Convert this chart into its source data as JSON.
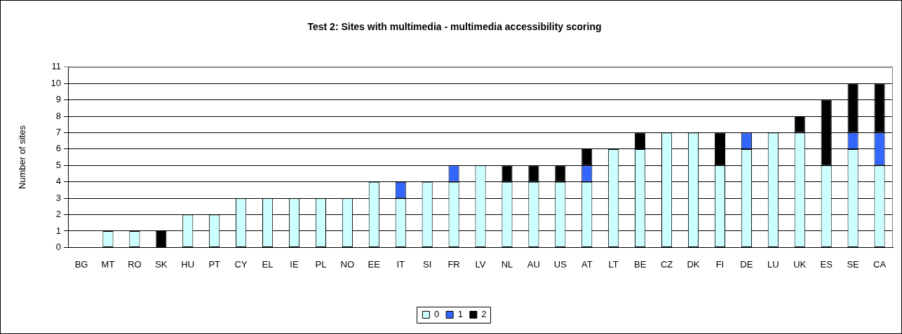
{
  "chart_data": {
    "type": "bar",
    "title": "Test 2: Sites with multimedia - multimedia accessibility scoring",
    "ylabel": "Number of sites",
    "categories": [
      "BG",
      "MT",
      "RO",
      "SK",
      "HU",
      "PT",
      "CY",
      "EL",
      "IE",
      "PL",
      "NO",
      "EE",
      "IT",
      "SI",
      "FR",
      "LV",
      "NL",
      "AU",
      "US",
      "AT",
      "LT",
      "BE",
      "CZ",
      "DK",
      "FI",
      "DE",
      "LU",
      "UK",
      "ES",
      "SE",
      "CA"
    ],
    "series": [
      {
        "name": "0",
        "color": "#ccffff",
        "values": [
          0,
          1,
          1,
          0,
          2,
          2,
          3,
          3,
          3,
          3,
          3,
          4,
          3,
          4,
          4,
          5,
          4,
          4,
          4,
          4,
          6,
          6,
          7,
          7,
          5,
          6,
          7,
          7,
          5,
          6,
          5
        ]
      },
      {
        "name": "1",
        "color": "#3366ff",
        "values": [
          0,
          0,
          0,
          0,
          0,
          0,
          0,
          0,
          0,
          0,
          0,
          0,
          1,
          0,
          1,
          0,
          0,
          0,
          0,
          1,
          0,
          0,
          0,
          0,
          0,
          1,
          0,
          0,
          0,
          1,
          2
        ]
      },
      {
        "name": "2",
        "color": "#000000",
        "values": [
          0,
          0,
          0,
          1,
          0,
          0,
          0,
          0,
          0,
          0,
          0,
          0,
          0,
          0,
          0,
          0,
          1,
          1,
          1,
          1,
          0,
          1,
          0,
          0,
          2,
          0,
          0,
          1,
          4,
          3,
          3
        ]
      }
    ],
    "stacked": true,
    "ylim": [
      0,
      11
    ],
    "yticks": [
      0,
      1,
      2,
      3,
      4,
      5,
      6,
      7,
      8,
      9,
      10,
      11
    ],
    "grid": "y",
    "legend": "bottom"
  }
}
